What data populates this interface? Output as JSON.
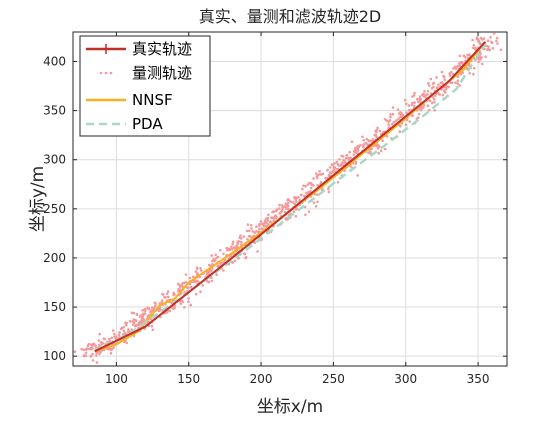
{
  "chart_data": {
    "type": "scatter",
    "title": "真实、量测和滤波轨迹2D",
    "xlabel": "坐标x/m",
    "ylabel": "坐标y/m",
    "xlim": [
      70,
      370
    ],
    "ylim": [
      90,
      430
    ],
    "xticks": [
      100,
      150,
      200,
      250,
      300,
      350
    ],
    "yticks": [
      100,
      150,
      200,
      250,
      300,
      350,
      400
    ],
    "grid": true,
    "legend_position": "top-left",
    "series": [
      {
        "name": "真实轨迹",
        "kind": "line",
        "color": "#c0302a",
        "x": [
          85,
          120,
          150,
          180,
          210,
          240,
          270,
          300,
          330,
          355
        ],
        "y": [
          105,
          130,
          165,
          200,
          236,
          272,
          308,
          344,
          380,
          420
        ]
      },
      {
        "name": "量测轨迹",
        "kind": "scatter",
        "color": "#f5999b",
        "x": [
          80,
          100,
          120,
          140,
          160,
          180,
          200,
          220,
          240,
          260,
          280,
          300,
          320,
          340,
          360
        ],
        "y": [
          100,
          118,
          140,
          158,
          183,
          204,
          228,
          250,
          274,
          298,
          322,
          345,
          368,
          394,
          425
        ],
        "spread_x": 9,
        "spread_y": 11,
        "count": 1100
      },
      {
        "name": "NNSF",
        "kind": "line",
        "color": "#f6b221",
        "x": [
          85,
          100,
          115,
          130,
          140,
          150,
          165,
          180,
          200,
          220,
          240,
          260,
          280,
          300,
          320,
          340,
          355
        ],
        "y": [
          105,
          112,
          125,
          152,
          158,
          175,
          190,
          205,
          226,
          248,
          270,
          294,
          318,
          342,
          368,
          392,
          420
        ]
      },
      {
        "name": "PDA",
        "kind": "dashed",
        "color": "#a9d9c6",
        "x": [
          85,
          110,
          135,
          160,
          185,
          210,
          235,
          260,
          285,
          310,
          335,
          355
        ],
        "y": [
          106,
          124,
          150,
          176,
          203,
          231,
          259,
          287,
          314,
          342,
          372,
          418
        ]
      }
    ]
  }
}
